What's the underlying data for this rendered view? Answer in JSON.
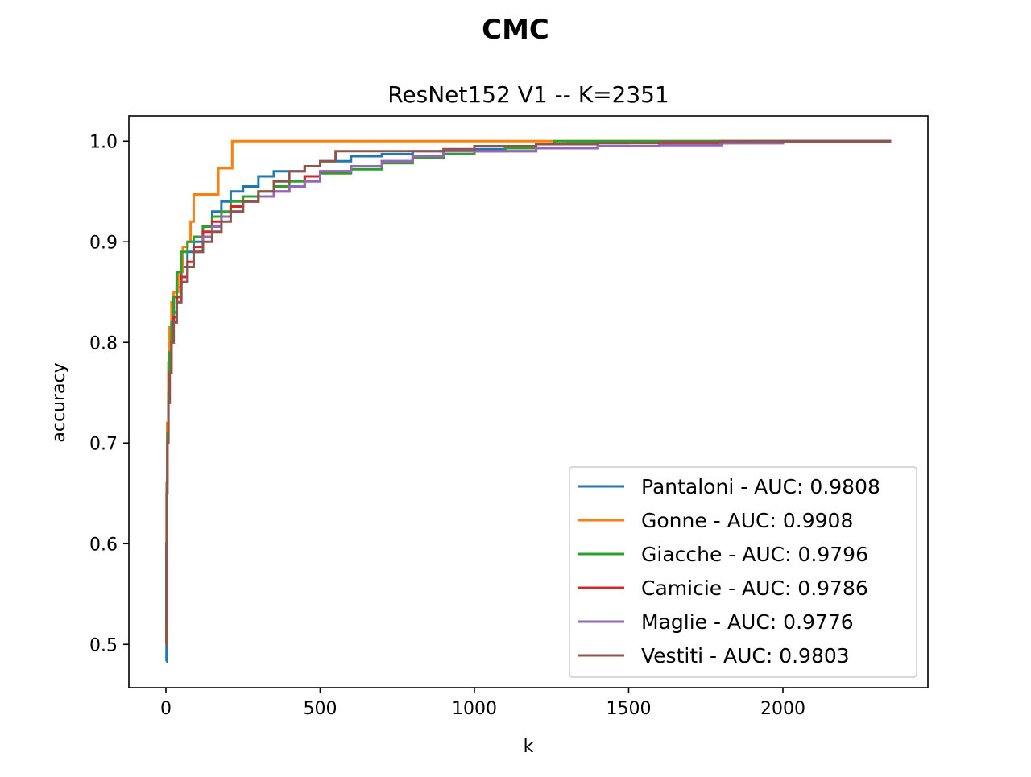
{
  "chart_data": {
    "type": "line",
    "title": "CMC",
    "subtitle": "ResNet152 V1 -- K=2351",
    "xlabel": "k",
    "ylabel": "accuracy",
    "xlim": [
      -120,
      2470
    ],
    "ylim": [
      0.457,
      1.025
    ],
    "xticks": [
      0,
      500,
      1000,
      1500,
      2000
    ],
    "xtick_labels": [
      "0",
      "500",
      "1000",
      "1500",
      "2000"
    ],
    "yticks": [
      0.5,
      0.6,
      0.7,
      0.8,
      0.9,
      1.0
    ],
    "ytick_labels": [
      "0.5",
      "0.6",
      "0.7",
      "0.8",
      "0.9",
      "1.0"
    ],
    "grid": false,
    "legend_position": "lower-right",
    "series": [
      {
        "name": "Pantaloni - AUC: 0.9808",
        "color": "#1f77b4",
        "x": [
          1,
          2,
          3,
          5,
          8,
          12,
          18,
          25,
          35,
          50,
          70,
          90,
          120,
          150,
          180,
          210,
          250,
          300,
          350,
          400,
          450,
          500,
          600,
          700,
          800,
          900,
          1000,
          1100,
          1200,
          1300,
          1500,
          1700,
          1900,
          2100,
          2351
        ],
        "y": [
          0.483,
          0.58,
          0.65,
          0.7,
          0.74,
          0.77,
          0.8,
          0.83,
          0.855,
          0.875,
          0.89,
          0.9,
          0.915,
          0.93,
          0.94,
          0.95,
          0.955,
          0.965,
          0.97,
          0.97,
          0.975,
          0.98,
          0.985,
          0.987,
          0.99,
          0.99,
          0.992,
          0.995,
          0.997,
          0.998,
          0.999,
          0.999,
          1.0,
          1.0,
          1.0
        ]
      },
      {
        "name": "Gonne - AUC: 0.9908",
        "color": "#ff7f0e",
        "x": [
          1,
          2,
          4,
          8,
          12,
          18,
          25,
          40,
          55,
          70,
          80,
          90,
          130,
          170,
          210,
          215,
          2351
        ],
        "y": [
          0.5,
          0.65,
          0.72,
          0.78,
          0.815,
          0.84,
          0.85,
          0.87,
          0.895,
          0.9,
          0.92,
          0.947,
          0.947,
          0.973,
          0.973,
          1.0,
          1.0
        ]
      },
      {
        "name": "Giacche - AUC: 0.9796",
        "color": "#2ca02c",
        "x": [
          1,
          2,
          3,
          5,
          8,
          12,
          18,
          25,
          35,
          50,
          70,
          90,
          120,
          150,
          180,
          210,
          250,
          300,
          350,
          400,
          450,
          500,
          600,
          700,
          800,
          900,
          1000,
          1100,
          1200,
          1260,
          2351
        ],
        "y": [
          0.5,
          0.6,
          0.66,
          0.71,
          0.75,
          0.79,
          0.82,
          0.845,
          0.87,
          0.89,
          0.9,
          0.905,
          0.915,
          0.925,
          0.93,
          0.94,
          0.945,
          0.95,
          0.955,
          0.96,
          0.965,
          0.968,
          0.972,
          0.978,
          0.983,
          0.987,
          0.99,
          0.993,
          0.997,
          1.0,
          1.0
        ]
      },
      {
        "name": "Camicie - AUC: 0.9786",
        "color": "#d62728",
        "x": [
          1,
          2,
          3,
          5,
          8,
          12,
          18,
          25,
          35,
          50,
          70,
          90,
          120,
          150,
          180,
          210,
          250,
          300,
          350,
          400,
          450,
          500,
          600,
          700,
          800,
          900,
          1000,
          1200,
          1400,
          1600,
          1800,
          2000,
          2351
        ],
        "y": [
          0.5,
          0.6,
          0.66,
          0.7,
          0.74,
          0.77,
          0.8,
          0.825,
          0.845,
          0.865,
          0.88,
          0.895,
          0.91,
          0.92,
          0.925,
          0.935,
          0.94,
          0.945,
          0.95,
          0.955,
          0.965,
          0.97,
          0.975,
          0.98,
          0.985,
          0.99,
          0.99,
          0.993,
          0.995,
          0.997,
          0.998,
          1.0,
          1.0
        ]
      },
      {
        "name": "Maglie - AUC: 0.9776",
        "color": "#9467bd",
        "x": [
          1,
          2,
          3,
          5,
          8,
          12,
          18,
          25,
          35,
          50,
          70,
          90,
          120,
          150,
          180,
          210,
          250,
          300,
          350,
          400,
          450,
          500,
          600,
          700,
          800,
          900,
          1000,
          1200,
          1400,
          1600,
          1800,
          2000,
          2351
        ],
        "y": [
          0.515,
          0.6,
          0.66,
          0.7,
          0.74,
          0.77,
          0.8,
          0.82,
          0.84,
          0.86,
          0.875,
          0.89,
          0.905,
          0.915,
          0.925,
          0.93,
          0.94,
          0.945,
          0.95,
          0.955,
          0.96,
          0.97,
          0.975,
          0.98,
          0.985,
          0.99,
          0.99,
          0.993,
          0.995,
          0.996,
          0.998,
          1.0,
          1.0
        ]
      },
      {
        "name": "Vestiti - AUC: 0.9803",
        "color": "#8c564b",
        "x": [
          1,
          2,
          3,
          5,
          8,
          12,
          18,
          25,
          35,
          50,
          70,
          90,
          120,
          150,
          180,
          210,
          250,
          300,
          350,
          400,
          450,
          500,
          550,
          600,
          700,
          800,
          900,
          1000,
          1200,
          1400,
          1600,
          1800,
          2000,
          2351
        ],
        "y": [
          0.5,
          0.6,
          0.66,
          0.7,
          0.74,
          0.77,
          0.8,
          0.82,
          0.84,
          0.86,
          0.875,
          0.89,
          0.9,
          0.91,
          0.92,
          0.93,
          0.94,
          0.95,
          0.96,
          0.97,
          0.975,
          0.98,
          0.99,
          0.99,
          0.99,
          0.99,
          0.992,
          0.995,
          0.997,
          0.998,
          0.999,
          1.0,
          1.0,
          1.0
        ]
      }
    ]
  }
}
